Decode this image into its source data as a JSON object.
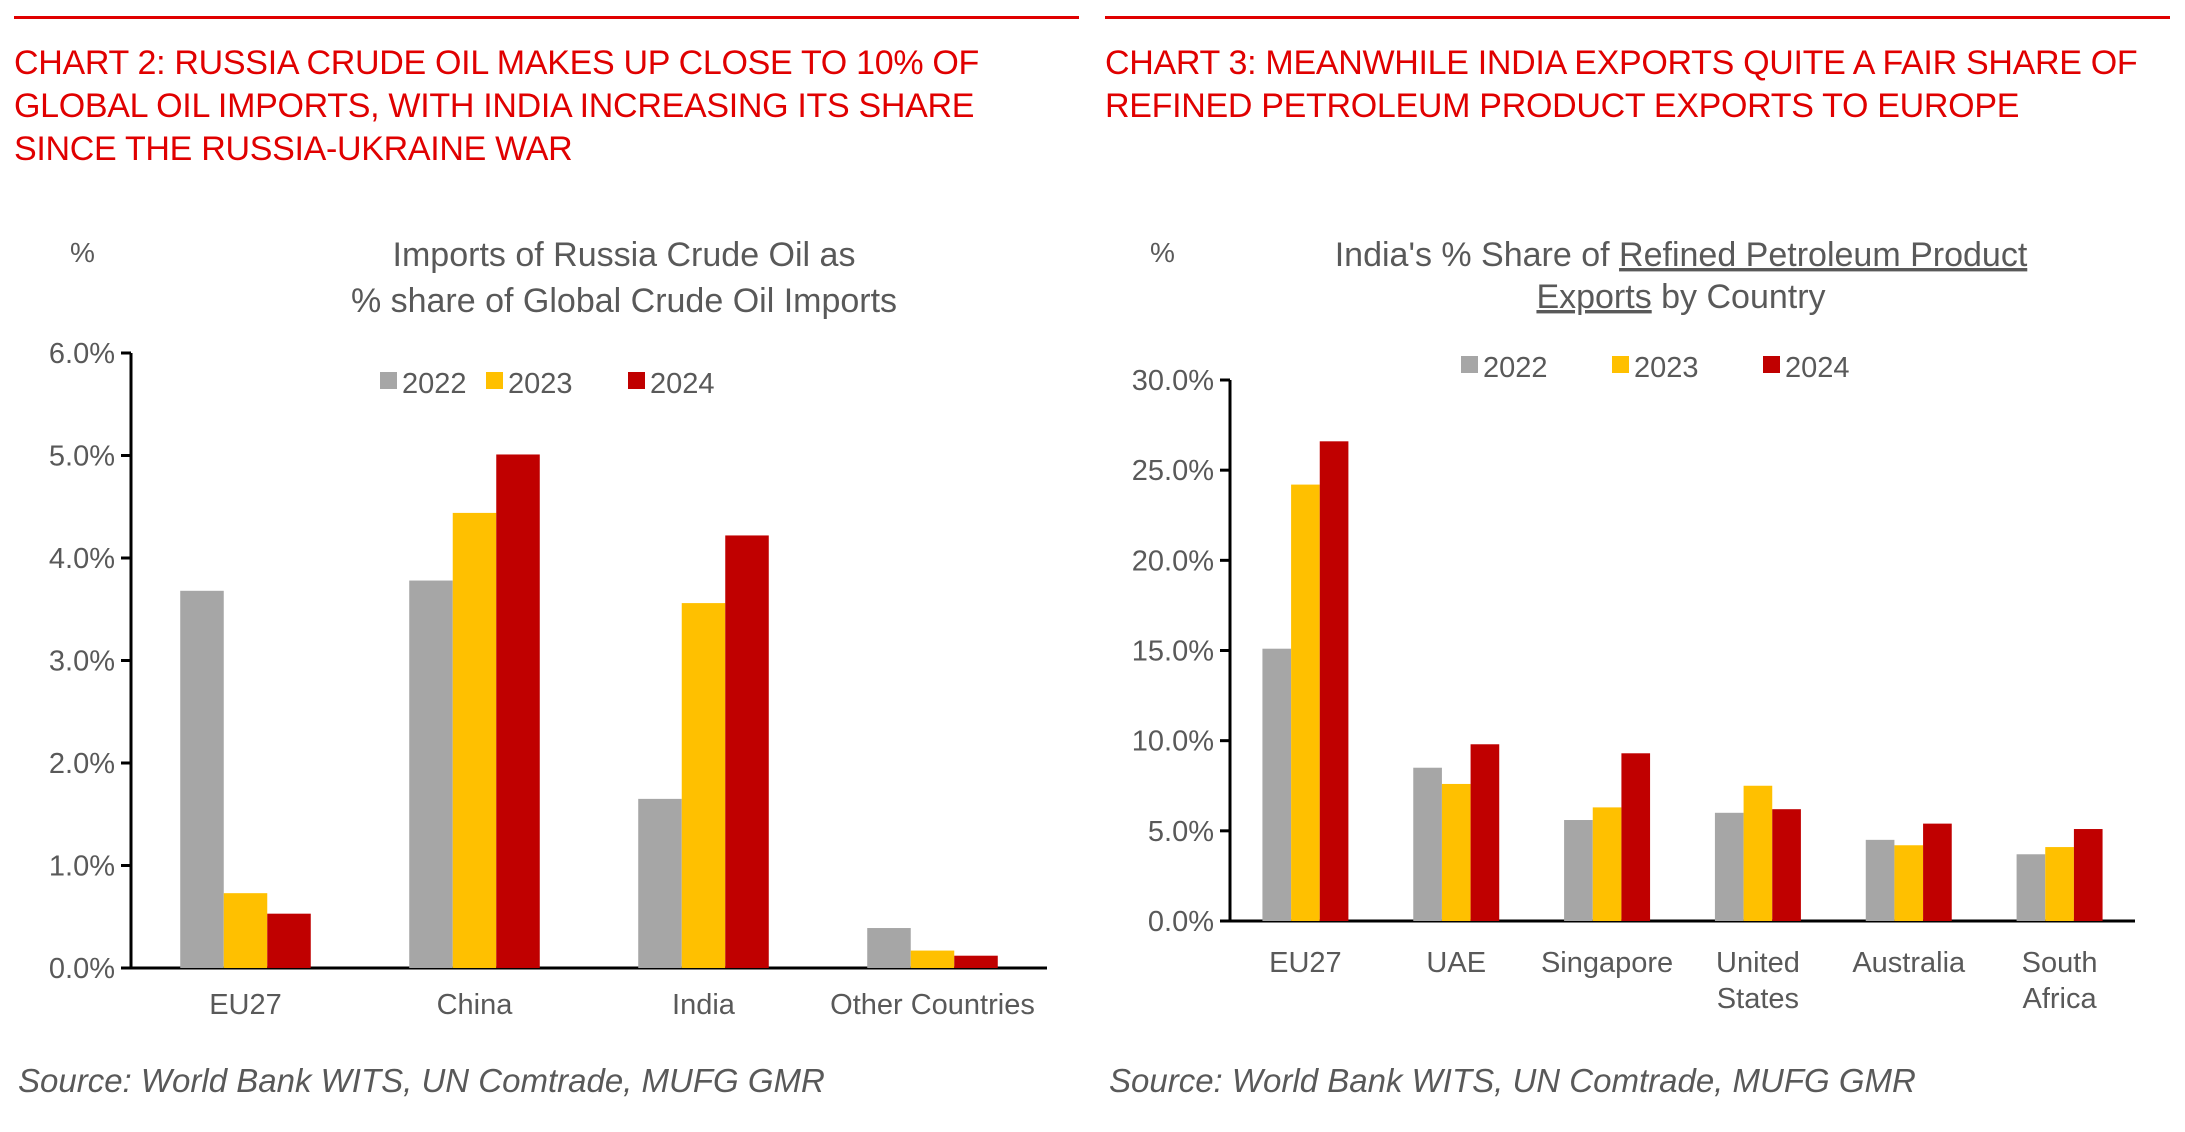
{
  "charts": [
    {
      "headline": "CHART 2: RUSSIA CRUDE OIL MAKES UP CLOSE TO 10% OF GLOBAL OIL IMPORTS, WITH INDIA INCREASING ITS SHARE SINCE THE RUSSIA-UKRAINE WAR",
      "unit_label": "%",
      "title_lines": [
        "Imports of Russia Crude Oil as",
        "% share of Global Crude Oil Imports"
      ],
      "source": "Source: World Bank WITS, UN Comtrade, MUFG GMR"
    },
    {
      "headline": "CHART 3: MEANWHILE INDIA EXPORTS QUITE A FAIR SHARE OF REFINED PETROLEUM PRODUCT EXPORTS TO EUROPE",
      "unit_label": "%",
      "title_lines": [
        "India's % Share of Refined Petroleum Product",
        "Exports by Country"
      ],
      "title_underlined": [
        "Refined Petroleum Product",
        "Exports"
      ],
      "source": "Source: World Bank WITS, UN Comtrade, MUFG GMR"
    }
  ],
  "colors": {
    "2022": "#a6a6a6",
    "2023": "#ffc000",
    "2024": "#c00000",
    "headline": "#e00000",
    "text": "#595959"
  },
  "chart_data": [
    {
      "type": "bar",
      "title": "Imports of Russia Crude Oil as % share of Global Crude Oil Imports",
      "xlabel": "",
      "ylabel": "%",
      "ylim": [
        0,
        6
      ],
      "yticks": [
        "0.0%",
        "1.0%",
        "2.0%",
        "3.0%",
        "4.0%",
        "5.0%",
        "6.0%"
      ],
      "ytick_values": [
        0,
        1,
        2,
        3,
        4,
        5,
        6
      ],
      "categories": [
        "EU27",
        "China",
        "India",
        "Other Countries"
      ],
      "category_lines": [
        [
          "EU27"
        ],
        [
          "China"
        ],
        [
          "India"
        ],
        [
          "Other Countries"
        ]
      ],
      "legend_position": "top-center",
      "grid": false,
      "series": [
        {
          "name": "2022",
          "color": "#a6a6a6",
          "values": [
            3.68,
            3.78,
            1.65,
            0.39
          ]
        },
        {
          "name": "2023",
          "color": "#ffc000",
          "values": [
            0.73,
            4.44,
            3.56,
            0.17
          ]
        },
        {
          "name": "2024",
          "color": "#c00000",
          "values": [
            0.53,
            5.01,
            4.22,
            0.12
          ]
        }
      ]
    },
    {
      "type": "bar",
      "title": "India's % Share of Refined Petroleum Product Exports by Country",
      "xlabel": "",
      "ylabel": "%",
      "ylim": [
        0,
        30
      ],
      "yticks": [
        "0.0%",
        "5.0%",
        "10.0%",
        "15.0%",
        "20.0%",
        "25.0%",
        "30.0%"
      ],
      "ytick_values": [
        0,
        5,
        10,
        15,
        20,
        25,
        30
      ],
      "categories": [
        "EU27",
        "UAE",
        "Singapore",
        "United States",
        "Australia",
        "South Africa"
      ],
      "category_lines": [
        [
          "EU27"
        ],
        [
          "UAE"
        ],
        [
          "Singapore"
        ],
        [
          "United",
          "States"
        ],
        [
          "Australia"
        ],
        [
          "South",
          "Africa"
        ]
      ],
      "legend_position": "top-center",
      "grid": false,
      "series": [
        {
          "name": "2022",
          "color": "#a6a6a6",
          "values": [
            15.1,
            8.5,
            5.6,
            6.0,
            4.5,
            3.7
          ]
        },
        {
          "name": "2023",
          "color": "#ffc000",
          "values": [
            24.2,
            7.6,
            6.3,
            7.5,
            4.2,
            4.1
          ]
        },
        {
          "name": "2024",
          "color": "#c00000",
          "values": [
            26.6,
            9.8,
            9.3,
            6.2,
            5.4,
            5.1
          ]
        }
      ]
    }
  ]
}
